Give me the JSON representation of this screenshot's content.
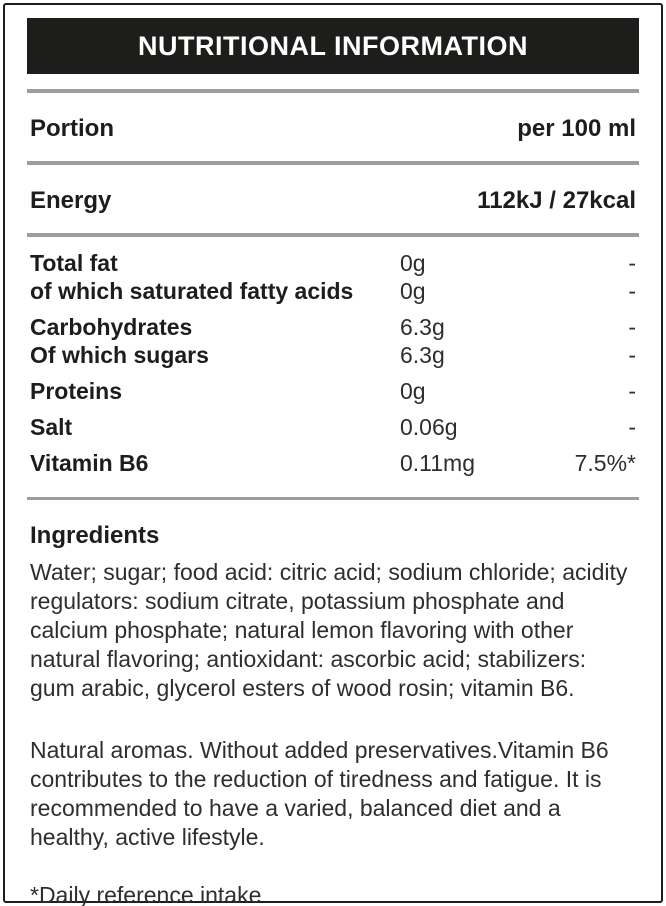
{
  "header": {
    "title": "NUTRITIONAL INFORMATION"
  },
  "portion": {
    "label": "Portion",
    "value": "per 100 ml"
  },
  "energy": {
    "label": "Energy",
    "value": "112kJ / 27kcal"
  },
  "nutrients": {
    "rows": [
      {
        "label": "Total fat",
        "amount": "0g",
        "dri": "-"
      },
      {
        "label": "of which saturated fatty acids",
        "amount": "0g",
        "dri": "-"
      },
      {
        "label": "Carbohydrates",
        "amount": "6.3g",
        "dri": "-"
      },
      {
        "label": "Of which sugars",
        "amount": "6.3g",
        "dri": "-"
      },
      {
        "label": "Proteins",
        "amount": "0g",
        "dri": "-"
      },
      {
        "label": "Salt",
        "amount": "0.06g",
        "dri": "-"
      },
      {
        "label": "Vitamin B6",
        "amount": "0.11mg",
        "dri": "7.5%*"
      }
    ]
  },
  "ingredients": {
    "heading": "Ingredients",
    "body": "Water; sugar; food acid: citric acid; sodium chloride; acidity regulators: sodium citrate, potassium phosphate and calcium phosphate; natural lemon flavoring with other natural flavoring; antioxidant: ascorbic acid; stabilizers: gum arabic, glycerol esters of wood rosin; vitamin B6."
  },
  "notes": {
    "body": "Natural aromas. Without added preservatives.Vitamin B6 contributes to the reduction of tiredness and fatigue. It is recommended to have a varied, balanced diet and a healthy, active lifestyle."
  },
  "footnote": "*Daily reference intake",
  "colors": {
    "header_bg": "#1d1d1b",
    "separator": "#9d9d9c",
    "text": "#1d1d1b",
    "body_text": "#2e2e2d"
  }
}
